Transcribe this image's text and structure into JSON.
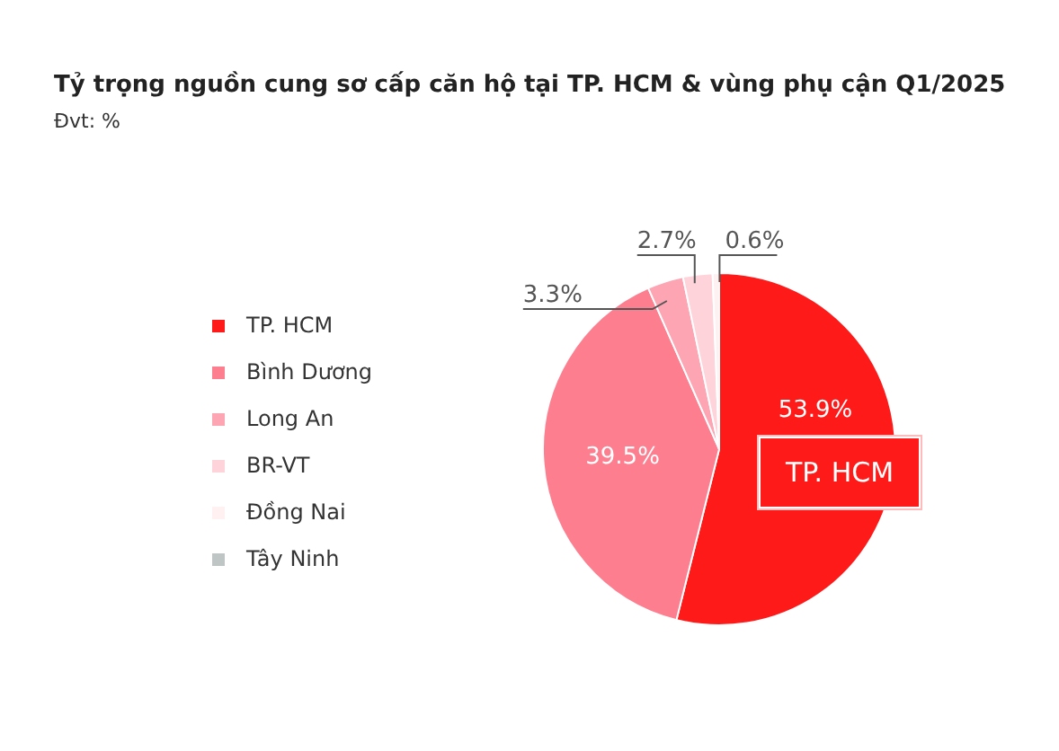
{
  "chart_data": {
    "type": "pie",
    "title": "Tỷ trọng nguồn cung sơ cấp căn hộ tại TP. HCM & vùng phụ cận Q1/2025",
    "subtitle": "Đvt: %",
    "categories": [
      "TP. HCM",
      "Bình Dương",
      "Long An",
      "BR-VT",
      "Đồng Nai",
      "Tây Ninh"
    ],
    "values": [
      53.9,
      39.5,
      3.3,
      2.7,
      0.6,
      0
    ],
    "colors": [
      "#ff1a1a",
      "#fd7f8f",
      "#fda5b2",
      "#fed3da",
      "#fff0f2",
      "#bfc4c4"
    ],
    "value_labels": [
      "53.9%",
      "39.5%",
      "3.3%",
      "2.7%",
      "0.6%",
      null
    ],
    "annotations": [
      "TP. HCM"
    ],
    "legend": "left"
  }
}
